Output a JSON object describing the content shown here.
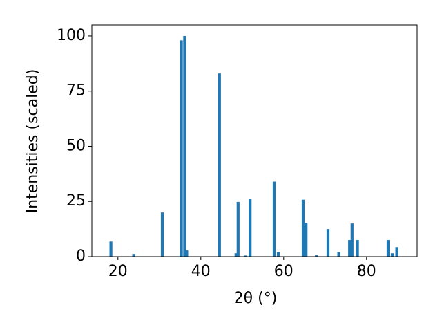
{
  "chart_data": {
    "type": "bar",
    "xlabel": "2θ (°)",
    "ylabel": "Intensities (scaled)",
    "x": [
      18.3,
      23.8,
      30.7,
      35.3,
      36.1,
      36.6,
      44.5,
      48.5,
      49.0,
      50.8,
      51.9,
      57.7,
      58.7,
      64.7,
      65.4,
      67.9,
      70.7,
      73.3,
      75.9,
      76.5,
      77.8,
      85.2,
      86.2,
      87.3
    ],
    "values": [
      6.8,
      1.2,
      20,
      98,
      100,
      2.8,
      83,
      1.5,
      24.8,
      0.5,
      26,
      34,
      2,
      25.8,
      15.3,
      0.8,
      12.5,
      2,
      7.5,
      15,
      7.5,
      7.5,
      1.5,
      4.3
    ],
    "color": "#1f77b4",
    "xlim": [
      13.7,
      92.2
    ],
    "xticks": [
      20,
      40,
      60,
      80
    ],
    "ylim": [
      0,
      105
    ],
    "yticks": [
      0,
      25,
      50,
      75,
      100
    ],
    "grid": false
  }
}
